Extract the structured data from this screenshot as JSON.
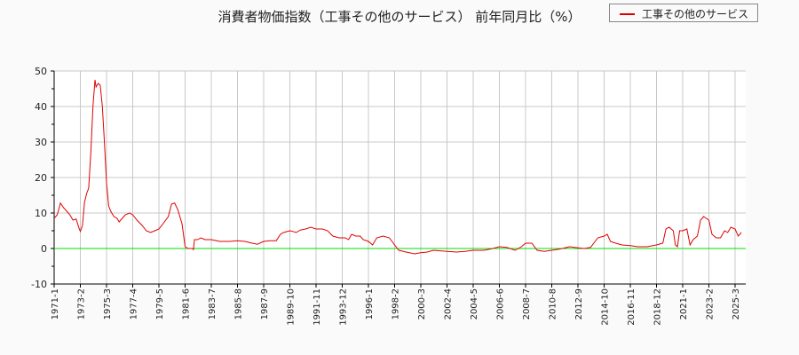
{
  "title": "消費者物価指数（工事その他のサービス） 前年同月比（%）",
  "legend": {
    "label": "工事その他のサービス",
    "color": "#e00000"
  },
  "colors": {
    "series": "#e00000",
    "zero_line": "#00dd00",
    "grid": "#c8c8c8",
    "plot_bg": "#ffffff",
    "page_bg": "#fafafa"
  },
  "chart_data": {
    "type": "line",
    "title": "消費者物価指数（工事その他のサービス） 前年同月比（%）",
    "xlabel": "",
    "ylabel": "",
    "ylim": [
      -10,
      50
    ],
    "yticks": [
      -10,
      0,
      10,
      20,
      30,
      40,
      50
    ],
    "grid": true,
    "legend_position": "top-right",
    "x_tick_labels": [
      "1971-1",
      "1973-2",
      "1975-3",
      "1977-4",
      "1979-5",
      "1981-6",
      "1983-7",
      "1985-8",
      "1987-9",
      "1989-10",
      "1991-11",
      "1993-12",
      "1996-1",
      "1998-2",
      "2000-3",
      "2002-4",
      "2004-5",
      "2006-6",
      "2008-7",
      "2010-8",
      "2012-9",
      "2014-10",
      "2016-11",
      "2018-12",
      "2021-1",
      "2023-2",
      "2025-3"
    ],
    "series": [
      {
        "name": "工事その他のサービス",
        "points": [
          [
            "1971-1",
            8.5
          ],
          [
            "1971-4",
            9.5
          ],
          [
            "1971-7",
            12.8
          ],
          [
            "1971-10",
            11.5
          ],
          [
            "1972-1",
            10.5
          ],
          [
            "1972-4",
            9.5
          ],
          [
            "1972-7",
            8.0
          ],
          [
            "1972-10",
            8.3
          ],
          [
            "1973-1",
            5.5
          ],
          [
            "1973-2",
            4.8
          ],
          [
            "1973-4",
            6.5
          ],
          [
            "1973-6",
            13.0
          ],
          [
            "1973-8",
            15.5
          ],
          [
            "1973-10",
            17.0
          ],
          [
            "1973-12",
            27.0
          ],
          [
            "1974-2",
            40.0
          ],
          [
            "1974-4",
            47.5
          ],
          [
            "1974-5",
            45.5
          ],
          [
            "1974-7",
            46.5
          ],
          [
            "1974-9",
            46.0
          ],
          [
            "1974-11",
            40.0
          ],
          [
            "1975-1",
            30.0
          ],
          [
            "1975-3",
            18.5
          ],
          [
            "1975-5",
            12.0
          ],
          [
            "1975-7",
            10.5
          ],
          [
            "1975-10",
            9.0
          ],
          [
            "1976-1",
            8.5
          ],
          [
            "1976-3",
            7.5
          ],
          [
            "1976-6",
            8.5
          ],
          [
            "1976-9",
            9.5
          ],
          [
            "1977-1",
            10.0
          ],
          [
            "1977-4",
            9.5
          ],
          [
            "1977-8",
            8.0
          ],
          [
            "1978-1",
            6.5
          ],
          [
            "1978-5",
            5.0
          ],
          [
            "1978-9",
            4.5
          ],
          [
            "1979-1",
            5.0
          ],
          [
            "1979-5",
            5.5
          ],
          [
            "1979-9",
            7.0
          ],
          [
            "1980-2",
            9.0
          ],
          [
            "1980-5",
            12.5
          ],
          [
            "1980-8",
            12.8
          ],
          [
            "1980-11",
            11.0
          ],
          [
            "1981-3",
            7.0
          ],
          [
            "1981-6",
            0.5
          ],
          [
            "1981-9",
            0.0
          ],
          [
            "1982-1",
            0.0
          ],
          [
            "1982-2",
            -0.3
          ],
          [
            "1982-3",
            2.5
          ],
          [
            "1982-6",
            2.5
          ],
          [
            "1982-9",
            3.0
          ],
          [
            "1983-1",
            2.5
          ],
          [
            "1983-7",
            2.5
          ],
          [
            "1984-3",
            2.0
          ],
          [
            "1985-1",
            2.0
          ],
          [
            "1985-8",
            2.2
          ],
          [
            "1986-3",
            2.0
          ],
          [
            "1986-10",
            1.5
          ],
          [
            "1987-3",
            1.2
          ],
          [
            "1987-9",
            2.0
          ],
          [
            "1988-3",
            2.2
          ],
          [
            "1988-9",
            2.2
          ],
          [
            "1989-1",
            4.0
          ],
          [
            "1989-4",
            4.5
          ],
          [
            "1989-10",
            5.0
          ],
          [
            "1990-1",
            4.8
          ],
          [
            "1990-4",
            4.5
          ],
          [
            "1990-8",
            5.2
          ],
          [
            "1991-1",
            5.5
          ],
          [
            "1991-6",
            6.0
          ],
          [
            "1991-11",
            5.5
          ],
          [
            "1992-5",
            5.5
          ],
          [
            "1992-10",
            5.0
          ],
          [
            "1993-3",
            3.5
          ],
          [
            "1993-9",
            3.0
          ],
          [
            "1994-3",
            3.0
          ],
          [
            "1994-6",
            2.5
          ],
          [
            "1994-9",
            4.0
          ],
          [
            "1995-1",
            3.5
          ],
          [
            "1995-5",
            3.5
          ],
          [
            "1995-8",
            2.5
          ],
          [
            "1996-1",
            2.0
          ],
          [
            "1996-5",
            1.0
          ],
          [
            "1996-9",
            3.0
          ],
          [
            "1997-3",
            3.5
          ],
          [
            "1997-9",
            3.0
          ],
          [
            "1998-2",
            1.0
          ],
          [
            "1998-6",
            -0.5
          ],
          [
            "1999-1",
            -1.0
          ],
          [
            "1999-9",
            -1.5
          ],
          [
            "2000-3",
            -1.2
          ],
          [
            "2000-9",
            -1.0
          ],
          [
            "2001-3",
            -0.5
          ],
          [
            "2002-4",
            -0.8
          ],
          [
            "2003-1",
            -1.0
          ],
          [
            "2003-9",
            -0.8
          ],
          [
            "2004-5",
            -0.5
          ],
          [
            "2005-3",
            -0.5
          ],
          [
            "2005-9",
            -0.2
          ],
          [
            "2006-6",
            0.5
          ],
          [
            "2007-1",
            0.3
          ],
          [
            "2007-9",
            -0.5
          ],
          [
            "2008-3",
            0.5
          ],
          [
            "2008-7",
            1.5
          ],
          [
            "2009-1",
            1.5
          ],
          [
            "2009-6",
            -0.5
          ],
          [
            "2010-1",
            -0.8
          ],
          [
            "2010-8",
            -0.5
          ],
          [
            "2011-3",
            -0.2
          ],
          [
            "2012-1",
            0.5
          ],
          [
            "2012-9",
            0.2
          ],
          [
            "2013-3",
            0.0
          ],
          [
            "2013-9",
            0.3
          ],
          [
            "2014-4",
            3.0
          ],
          [
            "2014-10",
            3.5
          ],
          [
            "2015-1",
            4.0
          ],
          [
            "2015-4",
            2.0
          ],
          [
            "2015-9",
            1.5
          ],
          [
            "2016-3",
            1.0
          ],
          [
            "2016-11",
            0.8
          ],
          [
            "2017-6",
            0.5
          ],
          [
            "2018-3",
            0.5
          ],
          [
            "2018-12",
            1.0
          ],
          [
            "2019-6",
            1.5
          ],
          [
            "2019-9",
            5.5
          ],
          [
            "2019-12",
            6.0
          ],
          [
            "2020-4",
            5.0
          ],
          [
            "2020-6",
            1.0
          ],
          [
            "2020-8",
            0.5
          ],
          [
            "2020-10",
            5.0
          ],
          [
            "2021-1",
            5.0
          ],
          [
            "2021-5",
            5.5
          ],
          [
            "2021-8",
            1.0
          ],
          [
            "2021-11",
            2.5
          ],
          [
            "2022-3",
            3.5
          ],
          [
            "2022-6",
            8.0
          ],
          [
            "2022-9",
            9.0
          ],
          [
            "2023-2",
            8.0
          ],
          [
            "2023-5",
            4.0
          ],
          [
            "2023-9",
            3.0
          ],
          [
            "2024-1",
            3.0
          ],
          [
            "2024-5",
            5.0
          ],
          [
            "2024-8",
            4.5
          ],
          [
            "2024-11",
            6.0
          ],
          [
            "2025-3",
            5.5
          ],
          [
            "2025-6",
            3.5
          ],
          [
            "2025-9",
            4.5
          ]
        ]
      }
    ]
  }
}
